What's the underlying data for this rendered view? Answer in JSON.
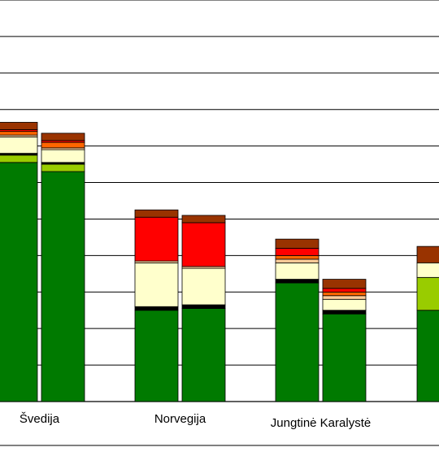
{
  "chart_data": {
    "type": "bar",
    "stacked": true,
    "grid": true,
    "ylim": [
      0,
      11
    ],
    "categories": [
      "Švedija",
      "Norvegija",
      "Jungtinė Karalystė"
    ],
    "segment_colors": [
      "#007a00",
      "#99cc00",
      "#000000",
      "#ffffcc",
      "#ffcc99",
      "#ff6600",
      "#ff0000",
      "#993300",
      "#7a3f1a"
    ],
    "bars": [
      {
        "category": "Švedija",
        "segments": [
          6.55,
          0.2,
          0.05,
          0.45,
          0.05,
          0.1,
          0.05,
          0.2
        ]
      },
      {
        "category": "Švedija",
        "segments": [
          6.3,
          0.2,
          0.05,
          0.35,
          0.05,
          0.15,
          0.05,
          0.2
        ]
      },
      {
        "category": "Norvegija",
        "segments": [
          2.5,
          0.0,
          0.1,
          1.2,
          0.05,
          0.0,
          1.2,
          0.2
        ]
      },
      {
        "category": "Norvegija",
        "segments": [
          2.55,
          0.0,
          0.1,
          1.0,
          0.05,
          0.0,
          1.2,
          0.2
        ]
      },
      {
        "category": "Jungtinė Karalystė",
        "segments": [
          3.25,
          0.0,
          0.1,
          0.45,
          0.1,
          0.1,
          0.2,
          0.25
        ]
      },
      {
        "category": "Jungtinė Karalystė",
        "segments": [
          2.4,
          0.0,
          0.1,
          0.3,
          0.1,
          0.1,
          0.1,
          0.25
        ]
      },
      {
        "category": "",
        "segments": [
          2.5,
          0.9,
          0.0,
          0.4,
          0.0,
          0.0,
          0.0,
          0.45
        ]
      }
    ]
  }
}
